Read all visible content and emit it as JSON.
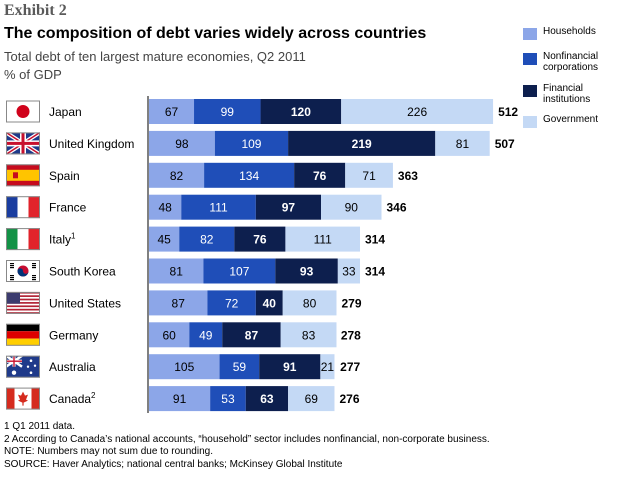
{
  "header": {
    "exhibit": "Exhibit 2",
    "title": "The composition of debt varies widely across countries",
    "subtitle": "Total debt of ten largest mature economies, Q2 2011",
    "units": "% of GDP"
  },
  "legend": {
    "items": [
      {
        "label": "Households",
        "color": "#8ca6e8"
      },
      {
        "label": "Nonfinancial corporations",
        "color": "#1f4eb8"
      },
      {
        "label": "Financial institutions",
        "color": "#0d1f4e"
      },
      {
        "label": "Government",
        "color": "#c4d9f5"
      }
    ]
  },
  "chart_data": {
    "type": "bar",
    "orientation": "horizontal",
    "stacked": true,
    "title": "The composition of debt varies widely across countries",
    "subtitle": "Total debt of ten largest mature economies, Q2 2011",
    "unit_label": "% of GDP",
    "categories": [
      {
        "name": "Japan",
        "sup": "",
        "flag": "japan-flag"
      },
      {
        "name": "United Kingdom",
        "sup": "",
        "flag": "uk-flag"
      },
      {
        "name": "Spain",
        "sup": "",
        "flag": "spain-flag"
      },
      {
        "name": "France",
        "sup": "",
        "flag": "france-flag"
      },
      {
        "name": "Italy",
        "sup": "1",
        "flag": "italy-flag"
      },
      {
        "name": "South Korea",
        "sup": "",
        "flag": "south-korea-flag"
      },
      {
        "name": "United States",
        "sup": "",
        "flag": "us-flag"
      },
      {
        "name": "Germany",
        "sup": "",
        "flag": "germany-flag"
      },
      {
        "name": "Australia",
        "sup": "",
        "flag": "australia-flag"
      },
      {
        "name": "Canada",
        "sup": "2",
        "flag": "canada-flag"
      }
    ],
    "series": [
      {
        "name": "Households",
        "color": "#8ca6e8",
        "values": [
          67,
          98,
          82,
          48,
          45,
          81,
          87,
          60,
          105,
          91
        ]
      },
      {
        "name": "Nonfinancial corporations",
        "color": "#1f4eb8",
        "values": [
          99,
          109,
          134,
          111,
          82,
          107,
          72,
          49,
          59,
          53
        ]
      },
      {
        "name": "Financial institutions",
        "color": "#0d1f4e",
        "values": [
          120,
          219,
          76,
          97,
          76,
          93,
          40,
          87,
          91,
          63
        ]
      },
      {
        "name": "Government",
        "color": "#c4d9f5",
        "values": [
          226,
          81,
          71,
          90,
          111,
          33,
          80,
          83,
          21,
          69
        ]
      }
    ],
    "totals": [
      512,
      507,
      363,
      346,
      314,
      314,
      279,
      278,
      277,
      276
    ]
  },
  "footnotes": [
    "1  Q1 2011 data.",
    "2  According to Canada’s national accounts, “household” sector includes nonfinancial, non-corporate business.",
    "NOTE: Numbers may not sum due to rounding.",
    "SOURCE: Haver Analytics; national central banks; McKinsey Global Institute"
  ]
}
